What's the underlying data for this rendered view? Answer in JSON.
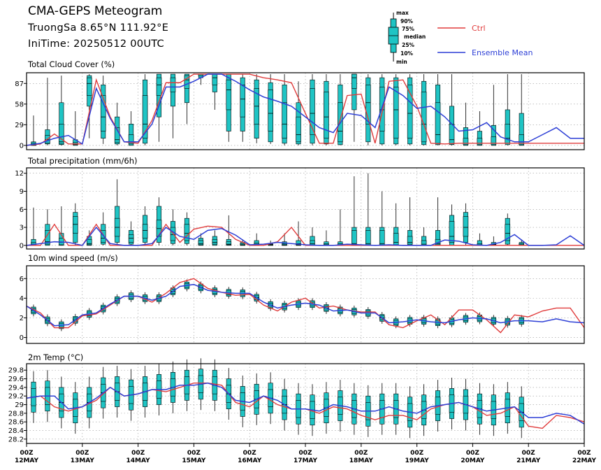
{
  "header": {
    "title": "CMA-GEPS Meteogram",
    "location": "TruongSa 8.65°N 111.92°E",
    "init_time": "IniTime: 20250512 00UTC"
  },
  "legend": {
    "box_labels": [
      "max",
      "90%",
      "75%",
      "median",
      "25%",
      "10%",
      "min"
    ],
    "ctrl_label": "Ctrl",
    "mean_label": "Ensemble Mean",
    "ctrl_color": "#e03c3c",
    "mean_color": "#2d3fd6",
    "box_color": "#1fc4c4"
  },
  "x_axis": {
    "labels": [
      {
        "hour": "00Z",
        "date": "12MAY"
      },
      {
        "hour": "00Z",
        "date": "13MAY"
      },
      {
        "hour": "00Z",
        "date": "14MAY"
      },
      {
        "hour": "00Z",
        "date": "15MAY"
      },
      {
        "hour": "00Z",
        "date": "16MAY"
      },
      {
        "hour": "00Z",
        "date": "17MAY"
      },
      {
        "hour": "00Z",
        "date": "18MAY"
      },
      {
        "hour": "00Z",
        "date": "19MAY"
      },
      {
        "hour": "00Z",
        "date": "20MAY"
      },
      {
        "hour": "00Z",
        "date": "21MAY"
      },
      {
        "hour": "00Z",
        "date": "22MAY"
      }
    ]
  },
  "chart_data": [
    {
      "type": "box-line",
      "title": "Total Cloud Cover (%)",
      "ylim": [
        -6,
        102
      ],
      "yticks": [
        0,
        29,
        58,
        87
      ],
      "grid": true,
      "x_start": "2025-05-12T00:00Z",
      "x_step_hours": 6,
      "box_x_offset_hours": 3,
      "ctrl": [
        0,
        2,
        16,
        2,
        2,
        92,
        40,
        5,
        3,
        35,
        88,
        88,
        100,
        100,
        100,
        100,
        100,
        95,
        92,
        88,
        45,
        3,
        3,
        70,
        72,
        3,
        90,
        92,
        55,
        3,
        2,
        3,
        3,
        3,
        3,
        3,
        3,
        3,
        3,
        3,
        3
      ],
      "mean": [
        0,
        3,
        10,
        14,
        2,
        80,
        38,
        5,
        5,
        30,
        82,
        82,
        90,
        100,
        100,
        90,
        78,
        68,
        62,
        55,
        40,
        25,
        18,
        45,
        42,
        25,
        82,
        70,
        52,
        55,
        40,
        20,
        22,
        32,
        12,
        5,
        5,
        15,
        25,
        10,
        10
      ],
      "boxes": [
        {
          "min": 0,
          "p10": 0,
          "p25": 0,
          "median": 1,
          "p75": 3,
          "p90": 5,
          "max": 42
        },
        {
          "min": 0,
          "p10": 2,
          "p25": 3,
          "median": 8,
          "p75": 14,
          "p90": 22,
          "max": 95
        },
        {
          "min": 0,
          "p10": 1,
          "p25": 2,
          "median": 5,
          "p75": 30,
          "p90": 60,
          "max": 98
        },
        {
          "min": 0,
          "p10": 0,
          "p25": 1,
          "median": 2,
          "p75": 4,
          "p90": 8,
          "max": 48
        },
        {
          "min": 10,
          "p10": 55,
          "p25": 70,
          "median": 87,
          "p75": 95,
          "p90": 98,
          "max": 100
        },
        {
          "min": 2,
          "p10": 10,
          "p25": 20,
          "median": 40,
          "p75": 70,
          "p90": 85,
          "max": 98
        },
        {
          "min": 0,
          "p10": 2,
          "p25": 4,
          "median": 8,
          "p75": 25,
          "p90": 40,
          "max": 60
        },
        {
          "min": 0,
          "p10": 0,
          "p25": 2,
          "median": 5,
          "p75": 15,
          "p90": 30,
          "max": 48
        },
        {
          "min": 0,
          "p10": 3,
          "p25": 10,
          "median": 30,
          "p75": 70,
          "p90": 92,
          "max": 100
        },
        {
          "min": 5,
          "p10": 40,
          "p25": 70,
          "median": 85,
          "p75": 95,
          "p90": 100,
          "max": 100
        },
        {
          "min": 10,
          "p10": 55,
          "p25": 75,
          "median": 88,
          "p75": 95,
          "p90": 100,
          "max": 100
        },
        {
          "min": 30,
          "p10": 60,
          "p25": 80,
          "median": 92,
          "p75": 98,
          "p90": 100,
          "max": 100
        },
        {
          "min": 85,
          "p10": 95,
          "p25": 98,
          "median": 100,
          "p75": 100,
          "p90": 100,
          "max": 100
        },
        {
          "min": 50,
          "p10": 75,
          "p25": 85,
          "median": 95,
          "p75": 100,
          "p90": 100,
          "max": 100
        },
        {
          "min": 5,
          "p10": 20,
          "p25": 50,
          "median": 78,
          "p75": 92,
          "p90": 100,
          "max": 100
        },
        {
          "min": 5,
          "p10": 20,
          "p25": 40,
          "median": 65,
          "p75": 85,
          "p90": 95,
          "max": 100
        },
        {
          "min": 3,
          "p10": 10,
          "p25": 30,
          "median": 55,
          "p75": 80,
          "p90": 92,
          "max": 100
        },
        {
          "min": 2,
          "p10": 5,
          "p25": 20,
          "median": 45,
          "p75": 78,
          "p90": 88,
          "max": 100
        },
        {
          "min": 0,
          "p10": 3,
          "p25": 10,
          "median": 30,
          "p75": 60,
          "p90": 85,
          "max": 100
        },
        {
          "min": 0,
          "p10": 2,
          "p25": 5,
          "median": 15,
          "p75": 40,
          "p90": 60,
          "max": 90
        },
        {
          "min": 0,
          "p10": 3,
          "p25": 15,
          "median": 45,
          "p75": 80,
          "p90": 92,
          "max": 100
        },
        {
          "min": 0,
          "p10": 2,
          "p25": 10,
          "median": 40,
          "p75": 75,
          "p90": 90,
          "max": 100
        },
        {
          "min": 0,
          "p10": 1,
          "p25": 5,
          "median": 20,
          "p75": 60,
          "p90": 85,
          "max": 100
        },
        {
          "min": 5,
          "p10": 50,
          "p25": 80,
          "median": 95,
          "p75": 100,
          "p90": 100,
          "max": 100
        },
        {
          "min": 0,
          "p10": 5,
          "p25": 30,
          "median": 60,
          "p75": 85,
          "p90": 95,
          "max": 100
        },
        {
          "min": 0,
          "p10": 2,
          "p25": 20,
          "median": 50,
          "p75": 82,
          "p90": 95,
          "max": 100
        },
        {
          "min": 0,
          "p10": 2,
          "p25": 10,
          "median": 50,
          "p75": 82,
          "p90": 95,
          "max": 100
        },
        {
          "min": 0,
          "p10": 2,
          "p25": 10,
          "median": 45,
          "p75": 85,
          "p90": 95,
          "max": 100
        },
        {
          "min": 0,
          "p10": 1,
          "p25": 5,
          "median": 30,
          "p75": 75,
          "p90": 90,
          "max": 100
        },
        {
          "min": 0,
          "p10": 1,
          "p25": 3,
          "median": 15,
          "p75": 60,
          "p90": 85,
          "max": 100
        },
        {
          "min": 0,
          "p10": 1,
          "p25": 2,
          "median": 8,
          "p75": 30,
          "p90": 55,
          "max": 100
        },
        {
          "min": 0,
          "p10": 0,
          "p25": 1,
          "median": 3,
          "p75": 10,
          "p90": 25,
          "max": 60
        },
        {
          "min": 0,
          "p10": 0,
          "p25": 1,
          "median": 3,
          "p75": 10,
          "p90": 20,
          "max": 48
        },
        {
          "min": 0,
          "p10": 0,
          "p25": 1,
          "median": 3,
          "p75": 12,
          "p90": 28,
          "max": 85
        },
        {
          "min": 0,
          "p10": 1,
          "p25": 3,
          "median": 10,
          "p75": 30,
          "p90": 50,
          "max": 100
        },
        {
          "min": 0,
          "p10": 0,
          "p25": 1,
          "median": 3,
          "p75": 15,
          "p90": 45,
          "max": 100
        }
      ]
    },
    {
      "type": "box-line",
      "title": "Total precipitation (mm/6h)",
      "ylim": [
        -0.6,
        12.9
      ],
      "yticks": [
        0,
        3,
        6,
        9,
        12
      ],
      "grid": true,
      "x_start": "2025-05-12T00:00Z",
      "x_step_hours": 6,
      "box_x_offset_hours": 3,
      "ctrl": [
        0,
        0,
        3.5,
        0,
        0,
        3.5,
        0,
        0,
        0,
        0,
        3.5,
        0.5,
        2.7,
        3.2,
        3.0,
        1.0,
        0,
        0,
        0.6,
        3.0,
        0,
        0,
        0,
        0,
        0,
        0,
        0,
        0,
        0,
        0,
        0,
        0,
        0,
        0,
        0,
        0,
        0,
        0,
        0,
        0,
        0
      ],
      "mean": [
        0,
        0.3,
        0.6,
        0.5,
        0,
        3.0,
        0.3,
        0,
        0,
        0.3,
        3.0,
        1.5,
        1.0,
        2.5,
        2.8,
        1.7,
        0.1,
        0.2,
        0.5,
        0.3,
        0.1,
        0,
        0,
        0.2,
        0.1,
        0,
        0.1,
        0,
        0,
        0,
        0.9,
        0.7,
        0.1,
        0,
        0.5,
        1.8,
        0,
        0,
        0.1,
        1.6,
        0
      ],
      "boxes": [
        {
          "min": 0,
          "p10": 0,
          "p25": 0,
          "median": 0.2,
          "p75": 0.5,
          "p90": 1.0,
          "max": 6.3
        },
        {
          "min": 0,
          "p10": 0,
          "p25": 0.2,
          "median": 0.6,
          "p75": 2.5,
          "p90": 3.5,
          "max": 6.0
        },
        {
          "min": 0,
          "p10": 0,
          "p25": 0.1,
          "median": 0.5,
          "p75": 1.2,
          "p90": 2.0,
          "max": 6.5
        },
        {
          "min": 0,
          "p10": 0.5,
          "p25": 2.0,
          "median": 3.5,
          "p75": 4.8,
          "p90": 5.5,
          "max": 7.0
        },
        {
          "min": 0,
          "p10": 0,
          "p25": 0.1,
          "median": 0.3,
          "p75": 1.0,
          "p90": 1.5,
          "max": 2.5
        },
        {
          "min": 0,
          "p10": 0.2,
          "p25": 0.5,
          "median": 1.2,
          "p75": 2.5,
          "p90": 3.5,
          "max": 5.5
        },
        {
          "min": 0,
          "p10": 0.5,
          "p25": 1.5,
          "median": 3.0,
          "p75": 4.5,
          "p90": 6.5,
          "max": 11.0
        },
        {
          "min": 0,
          "p10": 0.2,
          "p25": 0.5,
          "median": 1.2,
          "p75": 1.8,
          "p90": 2.5,
          "max": 4.0
        },
        {
          "min": 0,
          "p10": 0.5,
          "p25": 1.2,
          "median": 2.5,
          "p75": 3.5,
          "p90": 5.0,
          "max": 6.5
        },
        {
          "min": 0,
          "p10": 0.5,
          "p25": 1.5,
          "median": 2.8,
          "p75": 4.2,
          "p90": 6.5,
          "max": 8.0
        },
        {
          "min": 0,
          "p10": 0.3,
          "p25": 0.8,
          "median": 1.8,
          "p75": 3.0,
          "p90": 4.0,
          "max": 6.0
        },
        {
          "min": 0,
          "p10": 0.3,
          "p25": 0.8,
          "median": 2.0,
          "p75": 3.5,
          "p90": 4.5,
          "max": 5.5
        },
        {
          "min": 0,
          "p10": 0,
          "p25": 0.1,
          "median": 0.3,
          "p75": 0.8,
          "p90": 1.2,
          "max": 2.0
        },
        {
          "min": 0,
          "p10": 0,
          "p25": 0.2,
          "median": 0.5,
          "p75": 1.0,
          "p90": 1.5,
          "max": 2.5
        },
        {
          "min": 0,
          "p10": 0,
          "p25": 0.1,
          "median": 0.2,
          "p75": 0.6,
          "p90": 1.0,
          "max": 5.0
        },
        {
          "min": 0,
          "p10": 0,
          "p25": 0,
          "median": 0.1,
          "p75": 0.3,
          "p90": 0.5,
          "max": 1.0
        },
        {
          "min": 0,
          "p10": 0,
          "p25": 0.1,
          "median": 0.2,
          "p75": 0.4,
          "p90": 0.8,
          "max": 2.0
        },
        {
          "min": 0,
          "p10": 0,
          "p25": 0,
          "median": 0.1,
          "p75": 0.2,
          "p90": 0.3,
          "max": 0.8
        },
        {
          "min": 0,
          "p10": 0,
          "p25": 0,
          "median": 0.1,
          "p75": 0.3,
          "p90": 0.6,
          "max": 2.0
        },
        {
          "min": 0,
          "p10": 0,
          "p25": 0,
          "median": 0.1,
          "p75": 0.3,
          "p90": 0.8,
          "max": 4.0
        },
        {
          "min": 0,
          "p10": 0,
          "p25": 0.1,
          "median": 0.3,
          "p75": 0.8,
          "p90": 1.5,
          "max": 3.0
        },
        {
          "min": 0,
          "p10": 0,
          "p25": 0,
          "median": 0.1,
          "p75": 0.3,
          "p90": 0.6,
          "max": 2.5
        },
        {
          "min": 0,
          "p10": 0,
          "p25": 0,
          "median": 0.1,
          "p75": 0.3,
          "p90": 0.6,
          "max": 6.0
        },
        {
          "min": 0,
          "p10": 0,
          "p25": 0.1,
          "median": 0.3,
          "p75": 2.5,
          "p90": 3.0,
          "max": 11.5
        },
        {
          "min": 0,
          "p10": 0,
          "p25": 0.1,
          "median": 0.3,
          "p75": 2.5,
          "p90": 3.0,
          "max": 12.0
        },
        {
          "min": 0,
          "p10": 0,
          "p25": 0.1,
          "median": 0.3,
          "p75": 2.5,
          "p90": 3.0,
          "max": 9.0
        },
        {
          "min": 0,
          "p10": 0,
          "p25": 0.1,
          "median": 0.5,
          "p75": 2.0,
          "p90": 3.0,
          "max": 7.0
        },
        {
          "min": 0,
          "p10": 0,
          "p25": 0.2,
          "median": 0.5,
          "p75": 1.5,
          "p90": 2.5,
          "max": 8.0
        },
        {
          "min": 0,
          "p10": 0,
          "p25": 0,
          "median": 0.2,
          "p75": 0.8,
          "p90": 1.5,
          "max": 3.0
        },
        {
          "min": 0,
          "p10": 0,
          "p25": 0.1,
          "median": 0.3,
          "p75": 1.0,
          "p90": 2.5,
          "max": 8.0
        },
        {
          "min": 0,
          "p10": 0,
          "p25": 0.5,
          "median": 1.5,
          "p75": 4.0,
          "p90": 5.0,
          "max": 6.8
        },
        {
          "min": 0,
          "p10": 0.5,
          "p25": 1.5,
          "median": 3.0,
          "p75": 4.8,
          "p90": 5.5,
          "max": 7.0
        },
        {
          "min": 0,
          "p10": 0,
          "p25": 0,
          "median": 0.1,
          "p75": 0.3,
          "p90": 0.8,
          "max": 2.0
        },
        {
          "min": 0,
          "p10": 0,
          "p25": 0,
          "median": 0.1,
          "p75": 0.2,
          "p90": 0.5,
          "max": 1.5
        },
        {
          "min": 0,
          "p10": 0.2,
          "p25": 0.8,
          "median": 2.0,
          "p75": 3.5,
          "p90": 4.5,
          "max": 5.3
        },
        {
          "min": 0,
          "p10": 0,
          "p25": 0,
          "median": 0.1,
          "p75": 0.3,
          "p90": 0.5,
          "max": 1.0
        }
      ]
    },
    {
      "type": "box-line",
      "title": "10m wind speed (m/s)",
      "ylim": [
        -0.6,
        7.3
      ],
      "yticks": [
        0,
        2,
        4,
        6
      ],
      "grid": true,
      "x_start": "2025-05-12T00:00Z",
      "x_step_hours": 6,
      "box_x_offset_hours": 3,
      "ctrl": [
        3.2,
        2.5,
        1.0,
        1.0,
        2.2,
        2.4,
        3.3,
        4.2,
        4.2,
        3.6,
        4.5,
        5.6,
        6.0,
        5.0,
        4.6,
        4.3,
        4.4,
        3.3,
        2.7,
        3.6,
        4.0,
        3.0,
        3.2,
        2.8,
        2.6,
        2.6,
        1.3,
        1.0,
        1.7,
        2.3,
        1.3,
        2.8,
        2.8,
        1.8,
        0.5,
        2.3,
        2.1,
        2.7,
        3.0,
        3.0,
        1.0
      ],
      "mean": [
        3.2,
        2.3,
        1.2,
        1.3,
        2.3,
        2.5,
        3.4,
        4.2,
        4.2,
        3.8,
        4.2,
        5.2,
        5.4,
        4.8,
        4.6,
        4.5,
        4.5,
        3.6,
        3.0,
        3.3,
        3.5,
        3.3,
        2.7,
        2.8,
        2.5,
        2.5,
        1.5,
        1.6,
        1.8,
        1.6,
        1.5,
        1.8,
        2.0,
        1.9,
        1.5,
        1.7,
        1.7,
        1.6,
        1.9,
        1.6,
        1.5
      ]
    },
    {
      "type": "box-line",
      "title": "2m Temp (°C)",
      "ylim": [
        28.1,
        29.95
      ],
      "yticks": [
        28.2,
        28.4,
        28.6,
        28.8,
        29,
        29.2,
        29.4,
        29.6,
        29.8
      ],
      "ytick_labels": [
        "28.2",
        "28.4",
        "28.6",
        "28.8",
        "29",
        "29.2",
        "29.4",
        "29.6",
        "29.8"
      ],
      "grid": true,
      "x_start": "2025-05-12T00:00Z",
      "x_step_hours": 6,
      "box_x_offset_hours": 3,
      "ctrl": [
        29.15,
        29.2,
        28.95,
        28.85,
        28.95,
        29.1,
        29.4,
        29.2,
        29.25,
        29.35,
        29.3,
        29.4,
        29.5,
        29.5,
        29.45,
        29.05,
        28.95,
        29.2,
        29.0,
        28.9,
        28.9,
        28.8,
        28.95,
        28.9,
        28.75,
        28.65,
        28.75,
        28.75,
        28.65,
        28.9,
        29.0,
        29.05,
        28.95,
        28.75,
        28.8,
        28.95,
        28.5,
        28.45,
        28.75,
        28.7,
        28.6
      ],
      "mean": [
        29.15,
        29.2,
        29.2,
        28.9,
        28.95,
        29.15,
        29.4,
        29.2,
        29.25,
        29.35,
        29.35,
        29.45,
        29.45,
        29.5,
        29.4,
        29.1,
        29.05,
        29.2,
        29.1,
        28.9,
        28.9,
        28.85,
        29.0,
        28.95,
        28.85,
        28.85,
        28.95,
        28.85,
        28.8,
        28.95,
        29.0,
        29.05,
        28.95,
        28.85,
        28.9,
        28.95,
        28.7,
        28.7,
        28.8,
        28.75,
        28.55
      ]
    }
  ]
}
